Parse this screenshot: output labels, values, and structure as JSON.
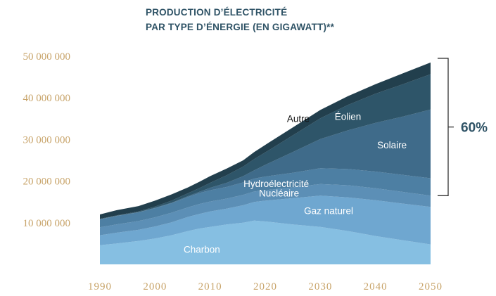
{
  "chart_data": {
    "type": "area",
    "stacked": true,
    "title": "PRODUCTION D’ÉLECTRICITÉ",
    "subtitle": "PAR TYPE D’ÉNERGIE (EN GIGAWATT)**",
    "xlabel": "",
    "ylabel": "",
    "x": [
      1990,
      1993,
      1997,
      2000,
      2003,
      2006,
      2008,
      2010,
      2013,
      2016,
      2018,
      2020,
      2025,
      2030,
      2035,
      2040,
      2045,
      2050
    ],
    "x_ticks": [
      "1990",
      "2000",
      "2010",
      "2020",
      "2030",
      "2040",
      "2050"
    ],
    "y_ticks": [
      "10 000 000",
      "20 000 000",
      "30 000 000",
      "40 000 000",
      "50 000 000"
    ],
    "ylim": [
      0,
      50000000
    ],
    "xlim": [
      1990,
      2050
    ],
    "grid": false,
    "legend": "none",
    "series": [
      {
        "name": "Charbon",
        "color": "#86bfe2",
        "values": [
          4600000,
          5000000,
          5600000,
          6200000,
          7000000,
          8000000,
          8600000,
          9000000,
          9600000,
          10000000,
          10500000,
          10300000,
          9600000,
          9000000,
          8000000,
          6800000,
          5800000,
          4800000
        ]
      },
      {
        "name": "Gaz naturel",
        "color": "#6fa7d0",
        "values": [
          2400000,
          2600000,
          2700000,
          2900000,
          3100000,
          3400000,
          3500000,
          3700000,
          3800000,
          4200000,
          4500000,
          5000000,
          6300000,
          7500000,
          8100000,
          8600000,
          8800000,
          9000000
        ]
      },
      {
        "name": "Nucléaire",
        "color": "#5c8fb6",
        "values": [
          1900000,
          2000000,
          2100000,
          2200000,
          2300000,
          2300000,
          2400000,
          2400000,
          2400000,
          2500000,
          2500000,
          2500000,
          2600000,
          2800000,
          2900000,
          2900000,
          2800000,
          2700000
        ]
      },
      {
        "name": "Hydroélectricité",
        "color": "#4d7fa3",
        "values": [
          1900000,
          2000000,
          2100000,
          2200000,
          2300000,
          2500000,
          2600000,
          2700000,
          2800000,
          3000000,
          3100000,
          3300000,
          3500000,
          3800000,
          3900000,
          4000000,
          4100000,
          4200000
        ]
      },
      {
        "name": "Solaire",
        "color": "#3f6b8a",
        "values": [
          50000,
          50000,
          50000,
          100000,
          100000,
          200000,
          300000,
          600000,
          1000000,
          1500000,
          2000000,
          2800000,
          5000000,
          7000000,
          9300000,
          11700000,
          14000000,
          16500000
        ]
      },
      {
        "name": "Éolien",
        "color": "#2e5569",
        "values": [
          100000,
          100000,
          150000,
          300000,
          500000,
          700000,
          900000,
          1200000,
          1800000,
          2300000,
          2700000,
          3000000,
          4000000,
          5000000,
          6100000,
          7000000,
          7800000,
          8500000
        ]
      },
      {
        "name": "Autre",
        "color": "#223f4d",
        "values": [
          1050000,
          1250000,
          1300000,
          1400000,
          1500000,
          1400000,
          1500000,
          1600000,
          1600000,
          1500000,
          1700000,
          1800000,
          1900000,
          2000000,
          2100000,
          2300000,
          2600000,
          2800000
        ]
      }
    ],
    "annotations": [
      {
        "text": "60%",
        "kind": "bracket",
        "from": 16500000,
        "to": 49500000
      }
    ]
  }
}
